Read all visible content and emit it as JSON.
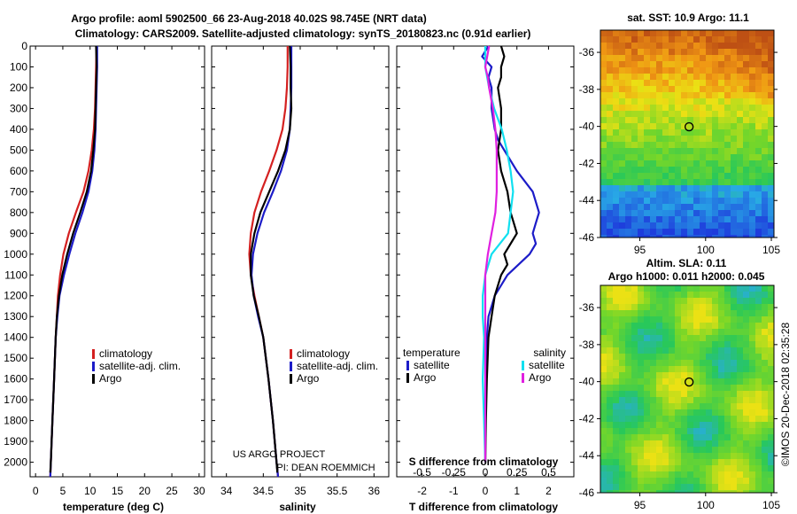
{
  "header": {
    "line1": "Argo profile: aoml 5902500_66 23-Aug-2018 40.02S 98.745E (NRT data)",
    "line2": "Climatology: CARS2009. Satellite-adjusted climatology: synTS_20180823.nc (0.91d earlier)"
  },
  "colors": {
    "climatology": "#d42020",
    "satellite": "#1c1cc8",
    "argo": "#000000",
    "argo_salinity_diff": "#e020e0",
    "satellite_salinity_diff": "#10e0f0"
  },
  "chart_data": [
    {
      "type": "line",
      "id": "temperature",
      "xlabel": "temperature (deg C)",
      "xlim": [
        -1,
        31
      ],
      "xticks": [
        0,
        5,
        10,
        15,
        20,
        25,
        30
      ],
      "ylim": [
        2070,
        0
      ],
      "yticks": [
        0,
        100,
        200,
        300,
        400,
        500,
        600,
        700,
        800,
        900,
        1000,
        1100,
        1200,
        1300,
        1400,
        1500,
        1600,
        1700,
        1800,
        1900,
        2000
      ],
      "legend": [
        "climatology",
        "satellite-adj. clim.",
        "Argo"
      ],
      "legend_position": "lower-right",
      "series": [
        {
          "name": "climatology",
          "color": "#d42020",
          "depth": [
            0,
            100,
            200,
            300,
            400,
            500,
            600,
            700,
            800,
            900,
            1000,
            1100,
            1200,
            1300,
            1400,
            1600,
            1800,
            2000,
            2070
          ],
          "values": [
            11.2,
            11.1,
            11.0,
            10.9,
            10.7,
            10.3,
            9.7,
            8.8,
            7.4,
            6.1,
            5.1,
            4.5,
            4.1,
            3.9,
            3.7,
            3.4,
            3.1,
            2.8,
            2.7
          ]
        },
        {
          "name": "satellite-adj. clim.",
          "color": "#1c1cc8",
          "depth": [
            0,
            100,
            200,
            300,
            400,
            500,
            600,
            700,
            800,
            900,
            1000,
            1100,
            1200,
            1300,
            1400,
            1600,
            1800,
            2000,
            2070
          ],
          "values": [
            11.3,
            11.3,
            11.2,
            11.1,
            11.0,
            10.8,
            10.4,
            9.7,
            8.6,
            7.3,
            6.2,
            5.2,
            4.4,
            4.0,
            3.7,
            3.4,
            3.1,
            2.8,
            2.7
          ]
        },
        {
          "name": "Argo",
          "color": "#000000",
          "depth": [
            0,
            100,
            200,
            300,
            400,
            500,
            600,
            700,
            800,
            900,
            1000,
            1100,
            1200,
            1300,
            1400,
            1600,
            1800,
            2000,
            2050
          ],
          "values": [
            11.1,
            11.2,
            11.1,
            11.0,
            10.9,
            10.6,
            10.2,
            9.4,
            8.2,
            6.9,
            5.8,
            4.9,
            4.3,
            3.9,
            3.7,
            3.4,
            3.1,
            2.8,
            2.7
          ]
        }
      ]
    },
    {
      "type": "line",
      "id": "salinity",
      "xlabel": "salinity",
      "xlim": [
        33.8,
        36.2
      ],
      "xticks": [
        34,
        34.5,
        35,
        35.5,
        36
      ],
      "xticklabels": [
        "34",
        "34.5",
        "35",
        "35.5",
        "36"
      ],
      "ylim": [
        2070,
        0
      ],
      "legend": [
        "climatology",
        "satellite-adj. clim.",
        "Argo"
      ],
      "legend_position": "lower-right",
      "annotation": [
        "US ARGO PROJECT",
        "PI: DEAN ROEMMICH"
      ],
      "series": [
        {
          "name": "climatology",
          "color": "#d42020",
          "depth": [
            0,
            100,
            200,
            300,
            400,
            500,
            600,
            700,
            800,
            900,
            1000,
            1100,
            1200,
            1300,
            1400,
            1600,
            1800,
            2000,
            2070
          ],
          "values": [
            34.83,
            34.83,
            34.82,
            34.8,
            34.76,
            34.68,
            34.58,
            34.47,
            34.38,
            34.33,
            34.31,
            34.33,
            34.38,
            34.44,
            34.5,
            34.57,
            34.63,
            34.68,
            34.7
          ]
        },
        {
          "name": "satellite-adj. clim.",
          "color": "#1c1cc8",
          "depth": [
            0,
            100,
            200,
            300,
            400,
            500,
            600,
            700,
            800,
            900,
            1000,
            1100,
            1200,
            1300,
            1400,
            1600,
            1800,
            2000,
            2070
          ],
          "values": [
            34.88,
            34.88,
            34.88,
            34.87,
            34.86,
            34.82,
            34.74,
            34.63,
            34.51,
            34.42,
            34.36,
            34.34,
            34.37,
            34.43,
            34.5,
            34.57,
            34.63,
            34.68,
            34.7
          ]
        },
        {
          "name": "Argo",
          "color": "#000000",
          "depth": [
            0,
            100,
            200,
            300,
            400,
            500,
            600,
            700,
            800,
            900,
            1000,
            1100,
            1200,
            1300,
            1400,
            1600,
            1800,
            2000,
            2050
          ],
          "values": [
            34.86,
            34.87,
            34.87,
            34.88,
            34.86,
            34.8,
            34.7,
            34.58,
            34.46,
            34.38,
            34.33,
            34.33,
            34.37,
            34.44,
            34.5,
            34.57,
            34.63,
            34.68,
            34.69
          ]
        }
      ]
    },
    {
      "type": "line",
      "id": "difference",
      "xlabel": "T difference from climatology",
      "xlabel_top": "S difference from climatology",
      "xlim": [
        -2.8,
        2.8
      ],
      "xticks": [
        -2,
        -1,
        0,
        1,
        2
      ],
      "xticks_s": [
        -0.5,
        -0.25,
        0,
        0.25,
        0.5
      ],
      "xticklabels_s": [
        "-0.5",
        "-0.25",
        "0",
        "0.25",
        "0.5"
      ],
      "ylim": [
        2070,
        0
      ],
      "legend_temperature_title": "temperature",
      "legend_salinity_title": "salinity",
      "legend_temperature": [
        "satellite",
        "Argo"
      ],
      "legend_salinity": [
        "satellite",
        "Argo"
      ],
      "legend_position": "lower-center",
      "series": [
        {
          "name": "temperature satellite",
          "color": "#1c1cc8",
          "depth": [
            0,
            50,
            100,
            150,
            200,
            300,
            400,
            450,
            500,
            600,
            700,
            800,
            850,
            900,
            950,
            1000,
            1100,
            1200,
            1300,
            1400,
            1600,
            1800,
            2000
          ],
          "values": [
            0.1,
            -0.1,
            0.2,
            0.1,
            0.2,
            0.2,
            0.3,
            0.4,
            0.6,
            1.0,
            1.5,
            1.7,
            1.6,
            1.5,
            1.6,
            1.4,
            0.7,
            0.3,
            0.1,
            0.05,
            0.02,
            0.0,
            0.0
          ]
        },
        {
          "name": "temperature Argo",
          "color": "#000000",
          "depth": [
            0,
            50,
            100,
            150,
            200,
            300,
            400,
            500,
            600,
            700,
            800,
            900,
            950,
            1000,
            1050,
            1100,
            1200,
            1300,
            1400,
            1600,
            1800,
            2000
          ],
          "values": [
            0.5,
            0.6,
            0.5,
            0.5,
            0.4,
            0.5,
            0.5,
            0.4,
            0.5,
            0.7,
            0.8,
            1.0,
            0.8,
            0.6,
            0.7,
            0.5,
            0.3,
            0.2,
            0.1,
            0.05,
            0.02,
            0.0
          ]
        },
        {
          "name": "salinity satellite",
          "color": "#10e0f0",
          "depth": [
            0,
            100,
            200,
            300,
            400,
            500,
            600,
            700,
            800,
            900,
            1000,
            1100,
            1200,
            1300,
            1400,
            1600,
            1800,
            2000
          ],
          "values": [
            0.0,
            0.0,
            0.03,
            0.07,
            0.13,
            0.17,
            0.2,
            0.22,
            0.2,
            0.18,
            0.05,
            0.0,
            -0.02,
            -0.02,
            -0.01,
            -0.02,
            -0.01,
            0.0
          ]
        },
        {
          "name": "salinity Argo",
          "color": "#e020e0",
          "depth": [
            0,
            100,
            150,
            200,
            300,
            400,
            500,
            600,
            700,
            800,
            900,
            1000,
            1100,
            1200,
            1300,
            1400,
            1600,
            1800,
            2000
          ],
          "values": [
            0.03,
            0.0,
            0.02,
            0.03,
            0.06,
            0.08,
            0.09,
            0.09,
            0.09,
            0.08,
            0.05,
            0.02,
            0.0,
            0.0,
            0.0,
            0.0,
            0.0,
            0.0,
            0.0
          ]
        }
      ]
    },
    {
      "type": "heatmap",
      "id": "sst-map",
      "title": "sat. SST: 10.9 Argo: 11.1",
      "xticks": [
        95,
        100,
        105
      ],
      "yticks": [
        -36,
        -38,
        -40,
        -42,
        -44,
        -46
      ],
      "xlim": [
        92,
        105.2
      ],
      "ylim": [
        -46,
        -34.8
      ],
      "marker": {
        "lon": 98.745,
        "lat": -40.02
      }
    },
    {
      "type": "heatmap",
      "id": "sla-map",
      "title": "Altim. SLA: 0.11",
      "subtitle": "Argo h1000: 0.011 h2000: 0.045",
      "xticks": [
        95,
        100,
        105
      ],
      "yticks": [
        -36,
        -38,
        -40,
        -42,
        -44,
        -46
      ],
      "xlim": [
        92,
        105.2
      ],
      "ylim": [
        -46,
        -34.8
      ],
      "marker": {
        "lon": 98.745,
        "lat": -40.02
      }
    }
  ],
  "credit": "©IMOS 20-Dec-2018 02:35:28"
}
